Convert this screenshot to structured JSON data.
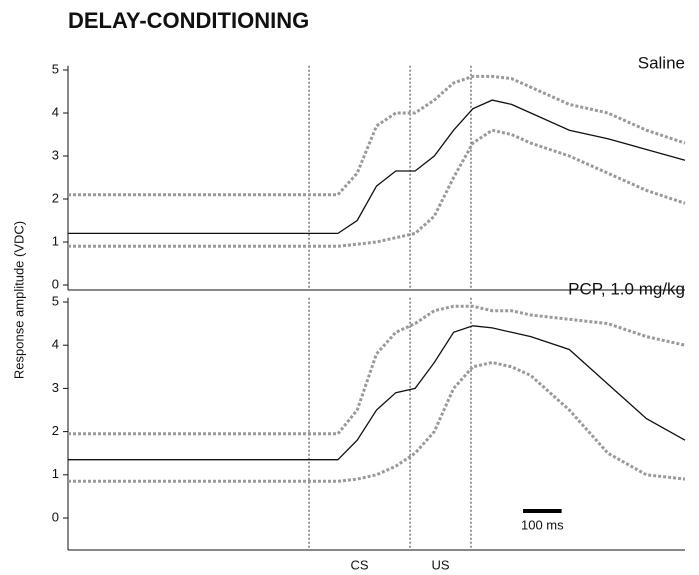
{
  "title": "DELAY-CONDITIONING",
  "y_label": "Response amplitude (VDC)",
  "event_labels": [
    "CS",
    "US"
  ],
  "chart_data": [
    {
      "type": "line",
      "label": "Saline",
      "x": [
        0,
        100,
        200,
        300,
        400,
        500,
        600,
        700,
        750,
        800,
        850,
        900,
        950,
        1000,
        1050,
        1100,
        1150,
        1200,
        1300,
        1400,
        1500,
        1600
      ],
      "xlim": [
        0,
        1600
      ],
      "ylim": [
        0,
        5.1
      ],
      "yticks": [
        0,
        1,
        2,
        3,
        4,
        5
      ],
      "markers": [
        625,
        887,
        1045
      ],
      "series": [
        {
          "color": "#9a9a9a",
          "values": [
            2.1,
            2.1,
            2.1,
            2.1,
            2.1,
            2.1,
            2.1,
            2.1,
            2.6,
            3.7,
            4.0,
            4.0,
            4.3,
            4.7,
            4.85,
            4.85,
            4.8,
            4.6,
            4.2,
            4.0,
            3.6,
            3.3
          ]
        },
        {
          "color": "#9a9a9a",
          "values": [
            0.9,
            0.9,
            0.9,
            0.9,
            0.9,
            0.9,
            0.9,
            0.9,
            0.95,
            1.0,
            1.1,
            1.2,
            1.6,
            2.5,
            3.3,
            3.6,
            3.5,
            3.3,
            3.0,
            2.6,
            2.2,
            1.9
          ]
        },
        {
          "color": "#111111",
          "values": [
            1.2,
            1.2,
            1.2,
            1.2,
            1.2,
            1.2,
            1.2,
            1.2,
            1.5,
            2.3,
            2.65,
            2.65,
            3.0,
            3.6,
            4.1,
            4.3,
            4.2,
            4.0,
            3.6,
            3.4,
            3.15,
            2.9
          ]
        }
      ]
    },
    {
      "type": "line",
      "label": "PCP, 1.0 mg/kg",
      "x": [
        0,
        100,
        200,
        300,
        400,
        500,
        600,
        700,
        750,
        800,
        850,
        900,
        950,
        1000,
        1050,
        1100,
        1150,
        1200,
        1300,
        1400,
        1500,
        1600
      ],
      "xlim": [
        0,
        1600
      ],
      "ylim": [
        0,
        5.1
      ],
      "yticks": [
        0,
        1,
        2,
        3,
        4,
        5
      ],
      "markers": [
        625,
        887,
        1045
      ],
      "scalebar": {
        "value": 100,
        "label": "100 ms"
      },
      "series": [
        {
          "color": "#9a9a9a",
          "values": [
            1.95,
            1.95,
            1.95,
            1.95,
            1.95,
            1.95,
            1.95,
            1.95,
            2.5,
            3.8,
            4.3,
            4.5,
            4.8,
            4.9,
            4.9,
            4.8,
            4.8,
            4.7,
            4.6,
            4.5,
            4.2,
            4.0
          ]
        },
        {
          "color": "#9a9a9a",
          "values": [
            0.85,
            0.85,
            0.85,
            0.85,
            0.85,
            0.85,
            0.85,
            0.85,
            0.9,
            1.0,
            1.2,
            1.5,
            2.0,
            3.0,
            3.5,
            3.6,
            3.5,
            3.3,
            2.5,
            1.5,
            1.0,
            0.9
          ]
        },
        {
          "color": "#111111",
          "values": [
            1.35,
            1.35,
            1.35,
            1.35,
            1.35,
            1.35,
            1.35,
            1.35,
            1.8,
            2.5,
            2.9,
            3.0,
            3.6,
            4.3,
            4.45,
            4.4,
            4.3,
            4.2,
            3.9,
            3.1,
            2.3,
            1.8
          ]
        }
      ]
    }
  ]
}
